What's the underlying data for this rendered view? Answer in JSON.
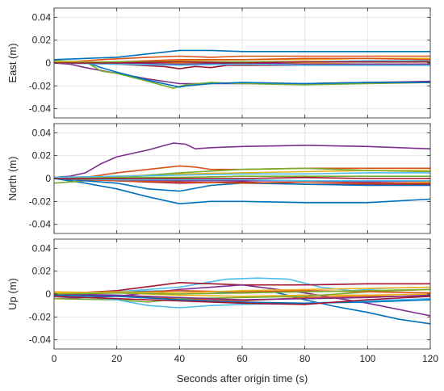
{
  "chart_data": [
    {
      "type": "line",
      "ylabel": "East (m)",
      "xlabel": "",
      "xlim": [
        0,
        120
      ],
      "ylim": [
        -0.048,
        0.048
      ],
      "xticks": [
        0,
        20,
        40,
        60,
        80,
        100,
        120
      ],
      "yticks": [
        0.04,
        0.02,
        0,
        -0.02,
        -0.04
      ],
      "ytick_labels": [
        "0.04",
        "0.02",
        "0",
        "-0.02",
        "-0.04"
      ],
      "grid": true,
      "series": [
        {
          "color": "#0072BD",
          "x": [
            0,
            10,
            20,
            30,
            40,
            50,
            60,
            80,
            100,
            120
          ],
          "y": [
            0.003,
            0.004,
            0.005,
            0.008,
            0.011,
            0.011,
            0.01,
            0.01,
            0.01,
            0.01
          ]
        },
        {
          "color": "#D95319",
          "x": [
            0,
            15,
            30,
            40,
            50,
            60,
            80,
            100,
            120
          ],
          "y": [
            0,
            0.003,
            0.005,
            0.006,
            0.005,
            0.006,
            0.006,
            0.006,
            0.006
          ]
        },
        {
          "color": "#EDB120",
          "x": [
            0,
            20,
            40,
            60,
            80,
            100,
            120
          ],
          "y": [
            0,
            0.001,
            0.002,
            0.003,
            0.003,
            0.004,
            0.004
          ]
        },
        {
          "color": "#7E2F8E",
          "x": [
            0,
            5,
            10,
            20,
            30,
            40,
            50,
            60,
            80,
            100,
            120
          ],
          "y": [
            0,
            -0.001,
            -0.004,
            -0.009,
            -0.014,
            -0.018,
            -0.018,
            -0.018,
            -0.018,
            -0.017,
            -0.016
          ]
        },
        {
          "color": "#77AC30",
          "x": [
            0,
            10,
            15,
            20,
            30,
            38,
            42,
            50,
            60,
            80,
            100,
            120
          ],
          "y": [
            0.002,
            0.001,
            -0.007,
            -0.009,
            -0.016,
            -0.022,
            -0.019,
            -0.017,
            -0.018,
            -0.019,
            -0.018,
            -0.017
          ]
        },
        {
          "color": "#4DBEEE",
          "x": [
            0,
            20,
            40,
            60,
            80,
            100,
            120
          ],
          "y": [
            0,
            0.001,
            0,
            0.001,
            0.001,
            0.002,
            0.002
          ]
        },
        {
          "color": "#A2142F",
          "x": [
            0,
            20,
            35,
            40,
            45,
            50,
            55,
            60,
            80,
            100,
            120
          ],
          "y": [
            0,
            -0.001,
            -0.003,
            -0.005,
            -0.003,
            -0.004,
            -0.002,
            -0.002,
            -0.002,
            -0.002,
            -0.002
          ]
        },
        {
          "color": "#0072BD",
          "x": [
            0,
            10,
            15,
            20,
            30,
            40,
            42,
            50,
            60,
            80,
            100,
            120
          ],
          "y": [
            0.001,
            0.001,
            -0.004,
            -0.008,
            -0.015,
            -0.021,
            -0.02,
            -0.018,
            -0.017,
            -0.018,
            -0.017,
            -0.017
          ]
        },
        {
          "color": "#D95319",
          "x": [
            0,
            20,
            40,
            50,
            60,
            80,
            100,
            120
          ],
          "y": [
            0,
            0.001,
            0.003,
            0.003,
            0.003,
            0.004,
            0.004,
            0.003
          ]
        },
        {
          "color": "#EDB120",
          "x": [
            0,
            20,
            40,
            60,
            80,
            100,
            120
          ],
          "y": [
            0.001,
            0.001,
            0,
            -0.001,
            0,
            -0.001,
            -0.001
          ]
        },
        {
          "color": "#7E2F8E",
          "x": [
            0,
            20,
            40,
            60,
            80,
            100,
            120
          ],
          "y": [
            0,
            0,
            -0.001,
            0,
            -0.001,
            -0.001,
            -0.001
          ]
        },
        {
          "color": "#77AC30",
          "x": [
            0,
            20,
            40,
            60,
            80,
            100,
            120
          ],
          "y": [
            0,
            0.001,
            0.001,
            0.001,
            0.001,
            0.001,
            0.001
          ]
        },
        {
          "color": "#4DBEEE",
          "x": [
            0,
            20,
            40,
            60,
            80,
            100,
            120
          ],
          "y": [
            0,
            -0.001,
            -0.002,
            -0.001,
            -0.002,
            -0.002,
            -0.002
          ]
        },
        {
          "color": "#A2142F",
          "x": [
            0,
            20,
            40,
            60,
            80,
            100,
            120
          ],
          "y": [
            0,
            0,
            0.001,
            0,
            0.001,
            0.001,
            0.001
          ]
        }
      ]
    },
    {
      "type": "line",
      "ylabel": "North (m)",
      "xlabel": "",
      "xlim": [
        0,
        120
      ],
      "ylim": [
        -0.048,
        0.048
      ],
      "xticks": [
        0,
        20,
        40,
        60,
        80,
        100,
        120
      ],
      "yticks": [
        0.04,
        0.02,
        0,
        -0.02,
        -0.04
      ],
      "ytick_labels": [
        "0.04",
        "0.02",
        "0",
        "-0.02",
        "-0.04"
      ],
      "grid": true,
      "series": [
        {
          "color": "#7E2F8E",
          "x": [
            0,
            5,
            10,
            15,
            20,
            30,
            38,
            42,
            45,
            50,
            60,
            80,
            100,
            120
          ],
          "y": [
            0.001,
            0.002,
            0.005,
            0.013,
            0.019,
            0.025,
            0.031,
            0.03,
            0.026,
            0.027,
            0.028,
            0.029,
            0.028,
            0.026
          ]
        },
        {
          "color": "#0072BD",
          "x": [
            0,
            10,
            20,
            30,
            40,
            50,
            60,
            80,
            100,
            120
          ],
          "y": [
            0,
            -0.004,
            -0.009,
            -0.016,
            -0.022,
            -0.02,
            -0.02,
            -0.021,
            -0.021,
            -0.018
          ]
        },
        {
          "color": "#D95319",
          "x": [
            0,
            10,
            20,
            30,
            40,
            45,
            50,
            60,
            80,
            100,
            120
          ],
          "y": [
            0.001,
            0.001,
            0.005,
            0.008,
            0.011,
            0.01,
            0.008,
            0.008,
            0.009,
            0.009,
            0.009
          ]
        },
        {
          "color": "#EDB120",
          "x": [
            0,
            20,
            40,
            60,
            80,
            100,
            120
          ],
          "y": [
            0.001,
            0.002,
            0.004,
            0.005,
            0.006,
            0.007,
            0.007
          ]
        },
        {
          "color": "#77AC30",
          "x": [
            0,
            10,
            20,
            30,
            40,
            60,
            80,
            100,
            120
          ],
          "y": [
            -0.004,
            -0.002,
            0,
            0.003,
            0.005,
            0.008,
            0.009,
            0.007,
            0.006
          ]
        },
        {
          "color": "#4DBEEE",
          "x": [
            0,
            20,
            40,
            60,
            80,
            100,
            120
          ],
          "y": [
            0.001,
            0.002,
            0.003,
            0.004,
            0.004,
            0.005,
            0.005
          ]
        },
        {
          "color": "#A2142F",
          "x": [
            0,
            20,
            40,
            60,
            80,
            100,
            120
          ],
          "y": [
            0,
            -0.002,
            -0.004,
            -0.003,
            -0.005,
            -0.005,
            -0.005
          ]
        },
        {
          "color": "#0072BD",
          "x": [
            0,
            20,
            30,
            40,
            50,
            60,
            80,
            100,
            120
          ],
          "y": [
            0,
            -0.004,
            -0.009,
            -0.011,
            -0.006,
            -0.004,
            -0.005,
            -0.006,
            -0.006
          ]
        },
        {
          "color": "#D95319",
          "x": [
            0,
            20,
            40,
            60,
            80,
            100,
            120
          ],
          "y": [
            0,
            -0.002,
            -0.003,
            -0.004,
            -0.003,
            -0.004,
            -0.004
          ]
        },
        {
          "color": "#EDB120",
          "x": [
            0,
            20,
            40,
            60,
            80,
            100,
            120
          ],
          "y": [
            0,
            0,
            -0.001,
            -0.001,
            -0.002,
            -0.002,
            -0.003
          ]
        },
        {
          "color": "#7E2F8E",
          "x": [
            0,
            20,
            40,
            60,
            80,
            100,
            120
          ],
          "y": [
            0,
            -0.001,
            -0.002,
            -0.002,
            -0.002,
            -0.003,
            -0.002
          ]
        },
        {
          "color": "#77AC30",
          "x": [
            0,
            20,
            40,
            60,
            80,
            100,
            120
          ],
          "y": [
            0,
            0.001,
            0.001,
            0.002,
            0.002,
            0.002,
            0.002
          ]
        },
        {
          "color": "#4DBEEE",
          "x": [
            0,
            20,
            40,
            60,
            80,
            100,
            120
          ],
          "y": [
            0,
            -0.001,
            -0.001,
            -0.001,
            -0.002,
            -0.002,
            -0.002
          ]
        },
        {
          "color": "#A2142F",
          "x": [
            0,
            20,
            40,
            60,
            80,
            100,
            120
          ],
          "y": [
            0,
            0,
            0,
            0,
            0.001,
            0,
            0
          ]
        }
      ]
    },
    {
      "type": "line",
      "ylabel": "Up (m)",
      "xlabel": "Seconds after origin time (s)",
      "xlim": [
        0,
        120
      ],
      "ylim": [
        -0.048,
        0.048
      ],
      "xticks": [
        0,
        20,
        40,
        60,
        80,
        100,
        120
      ],
      "xtick_labels": [
        "0",
        "20",
        "40",
        "60",
        "80",
        "100",
        "120"
      ],
      "yticks": [
        0.04,
        0.02,
        0,
        -0.02,
        -0.04
      ],
      "ytick_labels": [
        "0.04",
        "0.02",
        "0",
        "-0.02",
        "-0.04"
      ],
      "grid": true,
      "series": [
        {
          "color": "#0072BD",
          "x": [
            0,
            20,
            40,
            60,
            70,
            80,
            90,
            100,
            110,
            120
          ],
          "y": [
            0,
            0.002,
            0.003,
            0.001,
            0.002,
            -0.005,
            -0.011,
            -0.016,
            -0.022,
            -0.026
          ]
        },
        {
          "color": "#4DBEEE",
          "x": [
            0,
            20,
            40,
            55,
            65,
            75,
            85,
            95,
            105,
            120
          ],
          "y": [
            0,
            0.002,
            0.006,
            0.013,
            0.014,
            0.013,
            0.006,
            0.003,
            0.005,
            0.006
          ]
        },
        {
          "color": "#A2142F",
          "x": [
            0,
            20,
            40,
            60,
            80,
            100,
            120
          ],
          "y": [
            0,
            0.003,
            0.01,
            0.008,
            0.008,
            0.009,
            0.009
          ]
        },
        {
          "color": "#7E2F8E",
          "x": [
            0,
            20,
            40,
            60,
            80,
            100,
            120
          ],
          "y": [
            -0.004,
            -0.002,
            0.004,
            0.008,
            0.001,
            -0.008,
            -0.019
          ]
        },
        {
          "color": "#D95319",
          "x": [
            0,
            20,
            40,
            60,
            80,
            100,
            120
          ],
          "y": [
            0.001,
            -0.002,
            -0.004,
            -0.006,
            -0.003,
            -0.002,
            -0.002
          ]
        },
        {
          "color": "#EDB120",
          "x": [
            0,
            20,
            40,
            60,
            80,
            100,
            120
          ],
          "y": [
            0.002,
            0.001,
            -0.001,
            -0.002,
            -0.001,
            -0.001,
            0
          ]
        },
        {
          "color": "#77AC30",
          "x": [
            0,
            20,
            30,
            40,
            60,
            80,
            100,
            120
          ],
          "y": [
            -0.004,
            -0.005,
            -0.007,
            -0.004,
            -0.003,
            -0.002,
            0.002,
            0.004
          ]
        },
        {
          "color": "#4DBEEE",
          "x": [
            0,
            20,
            30,
            40,
            50,
            60,
            80,
            100,
            120
          ],
          "y": [
            0,
            -0.005,
            -0.01,
            -0.012,
            -0.01,
            -0.009,
            -0.008,
            -0.006,
            -0.004
          ]
        },
        {
          "color": "#0072BD",
          "x": [
            0,
            20,
            40,
            60,
            80,
            100,
            120
          ],
          "y": [
            -0.001,
            -0.002,
            -0.005,
            -0.007,
            -0.008,
            -0.007,
            -0.005
          ]
        },
        {
          "color": "#A2142F",
          "x": [
            0,
            20,
            40,
            60,
            80,
            100,
            120
          ],
          "y": [
            -0.002,
            -0.004,
            -0.006,
            -0.008,
            -0.009,
            -0.005,
            -0.002
          ]
        },
        {
          "color": "#D95319",
          "x": [
            0,
            20,
            40,
            60,
            80,
            100,
            120
          ],
          "y": [
            0,
            0.001,
            0.003,
            0.002,
            0.003,
            0.002,
            0.001
          ]
        },
        {
          "color": "#EDB120",
          "x": [
            0,
            20,
            40,
            60,
            80,
            100,
            120
          ],
          "y": [
            0.001,
            0.002,
            0.001,
            0.003,
            0.004,
            0.005,
            0.006
          ]
        },
        {
          "color": "#7E2F8E",
          "x": [
            0,
            20,
            40,
            60,
            80,
            100,
            120
          ],
          "y": [
            0,
            -0.001,
            -0.003,
            -0.005,
            -0.004,
            -0.003,
            -0.001
          ]
        },
        {
          "color": "#77AC30",
          "x": [
            0,
            20,
            40,
            60,
            80,
            100,
            120
          ],
          "y": [
            0,
            0.001,
            0,
            0.001,
            0.002,
            0.003,
            0.004
          ]
        }
      ]
    }
  ]
}
